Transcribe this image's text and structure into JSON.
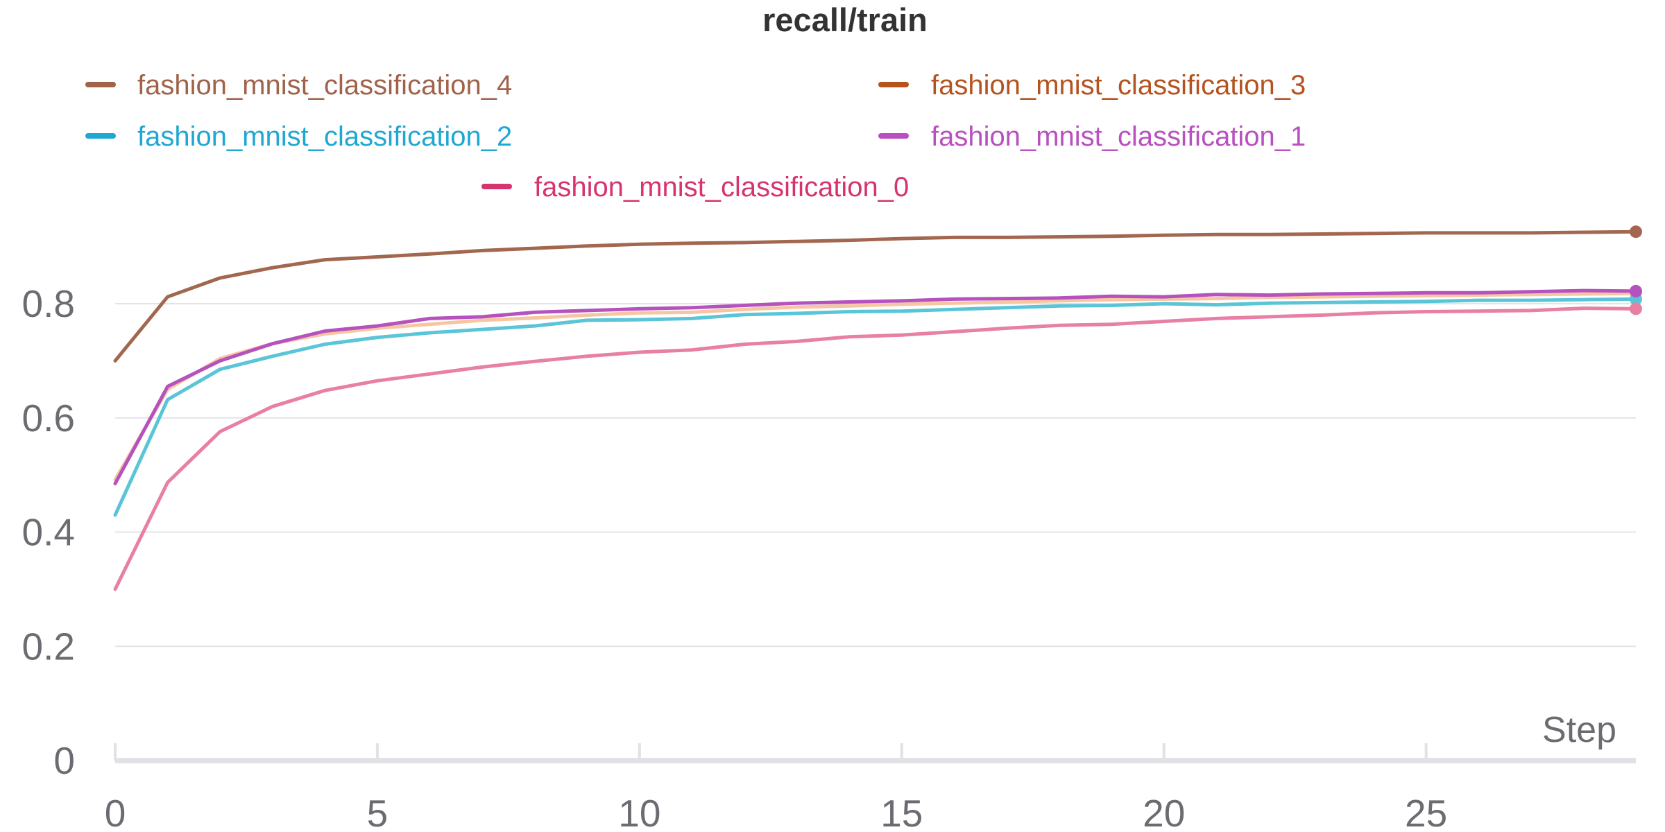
{
  "chart_data": {
    "type": "line",
    "title": "recall/train",
    "xlabel": "Step",
    "ylabel": "",
    "xlim": [
      0,
      29
    ],
    "ylim": [
      0,
      0.95
    ],
    "x_ticks": [
      0,
      5,
      10,
      15,
      20,
      25
    ],
    "y_ticks": [
      0,
      0.2,
      0.4,
      0.6,
      0.8
    ],
    "y_tick_labels": [
      "0",
      "0.2",
      "0.4",
      "0.6",
      "0.8"
    ],
    "grid": true,
    "legend_position": "top",
    "x": [
      0,
      1,
      2,
      3,
      4,
      5,
      6,
      7,
      8,
      9,
      10,
      11,
      12,
      13,
      14,
      15,
      16,
      17,
      18,
      19,
      20,
      21,
      22,
      23,
      24,
      25,
      26,
      27,
      28,
      29
    ],
    "series": [
      {
        "name": "fashion_mnist_classification_4",
        "legend_color": "#a0634a",
        "line_color": "#a3674f",
        "values": [
          0.7,
          0.812,
          0.845,
          0.863,
          0.877,
          0.882,
          0.887,
          0.893,
          0.897,
          0.901,
          0.904,
          0.906,
          0.907,
          0.909,
          0.911,
          0.914,
          0.916,
          0.916,
          0.917,
          0.918,
          0.92,
          0.921,
          0.921,
          0.922,
          0.923,
          0.924,
          0.924,
          0.924,
          0.925,
          0.926
        ]
      },
      {
        "name": "fashion_mnist_classification_3",
        "legend_color": "#b5531f",
        "line_color": "#f6c6a3",
        "values": [
          0.492,
          0.65,
          0.704,
          0.73,
          0.747,
          0.757,
          0.764,
          0.771,
          0.775,
          0.78,
          0.784,
          0.785,
          0.79,
          0.794,
          0.796,
          0.799,
          0.801,
          0.803,
          0.805,
          0.807,
          0.808,
          0.809,
          0.811,
          0.812,
          0.813,
          0.814,
          0.815,
          0.816,
          0.817,
          0.818
        ]
      },
      {
        "name": "fashion_mnist_classification_2",
        "legend_color": "#1fa7d3",
        "line_color": "#5ac5d8",
        "values": [
          0.43,
          0.632,
          0.685,
          0.708,
          0.729,
          0.741,
          0.749,
          0.755,
          0.761,
          0.771,
          0.772,
          0.774,
          0.781,
          0.783,
          0.786,
          0.787,
          0.79,
          0.793,
          0.796,
          0.797,
          0.8,
          0.798,
          0.801,
          0.802,
          0.803,
          0.804,
          0.806,
          0.806,
          0.807,
          0.808
        ]
      },
      {
        "name": "fashion_mnist_classification_1",
        "legend_color": "#b94fc0",
        "line_color": "#b552bd",
        "values": [
          0.485,
          0.655,
          0.7,
          0.73,
          0.752,
          0.761,
          0.774,
          0.777,
          0.785,
          0.788,
          0.791,
          0.793,
          0.797,
          0.801,
          0.803,
          0.805,
          0.808,
          0.809,
          0.81,
          0.813,
          0.812,
          0.816,
          0.815,
          0.817,
          0.818,
          0.819,
          0.819,
          0.821,
          0.823,
          0.822
        ]
      },
      {
        "name": "fashion_mnist_classification_0",
        "legend_color": "#d6336f",
        "line_color": "#e87fa5",
        "values": [
          0.3,
          0.487,
          0.576,
          0.62,
          0.648,
          0.665,
          0.677,
          0.689,
          0.699,
          0.708,
          0.715,
          0.719,
          0.729,
          0.734,
          0.742,
          0.745,
          0.751,
          0.757,
          0.762,
          0.764,
          0.769,
          0.774,
          0.777,
          0.78,
          0.784,
          0.786,
          0.787,
          0.788,
          0.792,
          0.791
        ]
      }
    ]
  }
}
